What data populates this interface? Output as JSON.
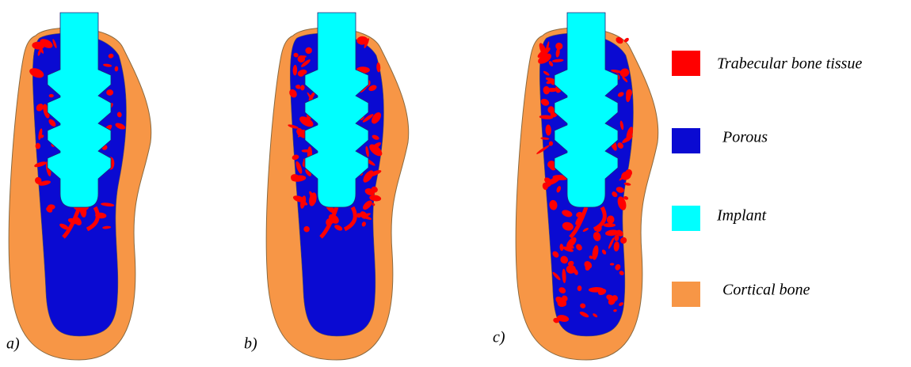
{
  "panels": [
    {
      "label": "a)"
    },
    {
      "label": "b)"
    },
    {
      "label": "c)"
    }
  ],
  "legend": [
    {
      "label": "Trabecular bone tissue",
      "color": "#ff0000"
    },
    {
      "label": "Porous",
      "color": "#0a0ad2"
    },
    {
      "label": "Implant",
      "color": "#00ffff"
    },
    {
      "label": "Cortical bone",
      "color": "#f79646"
    }
  ]
}
